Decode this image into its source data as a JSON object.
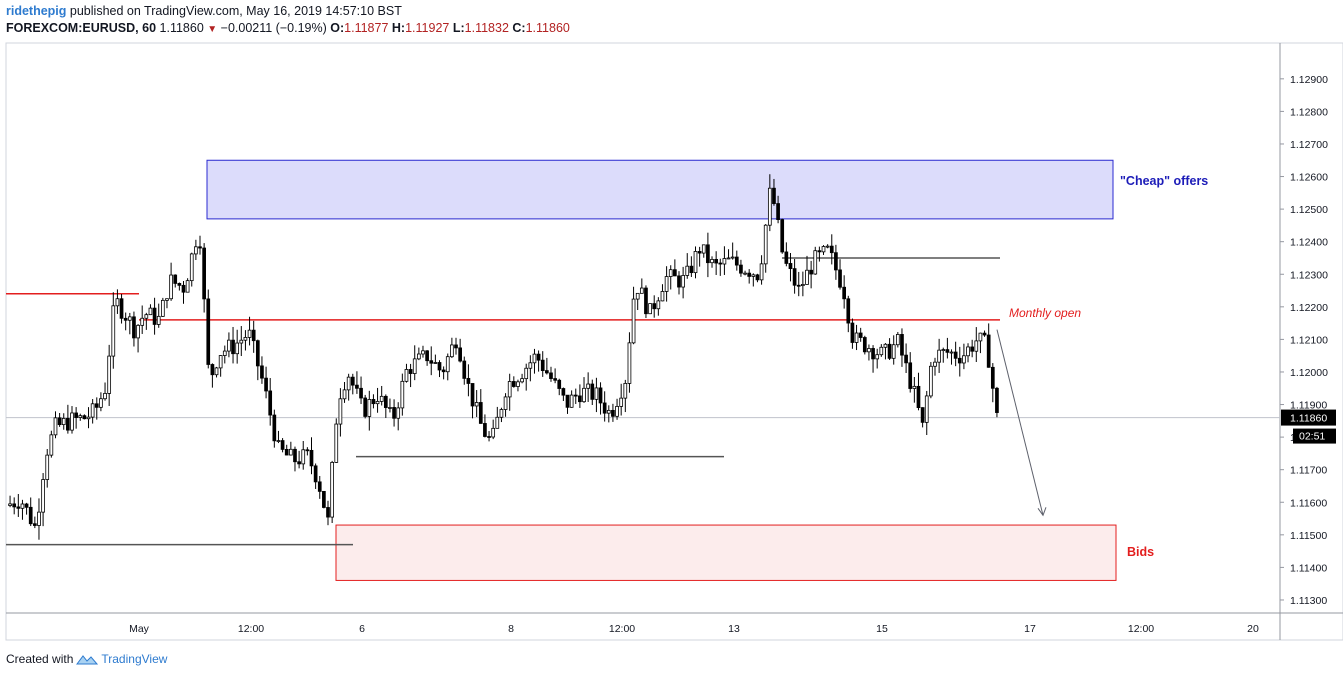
{
  "header": {
    "user": "ridethepig",
    "published": "published on TradingView.com, May 16, 2019 14:57:10 BST",
    "symbol": "FOREXCOM:EURUSD, 60",
    "last": "1.11860",
    "change": "−0.00211 (−0.19%)",
    "o_label": "O:",
    "o_value": "1.11877",
    "h_label": "H:",
    "h_value": "1.11927",
    "l_label": "L:",
    "l_value": "1.11832",
    "c_label": "C:",
    "c_value": "1.11860"
  },
  "footer": {
    "created_with": "Created with",
    "brand": "TradingView"
  },
  "colors": {
    "bull": "#ffffff",
    "bear": "#000000",
    "accent_red": "#e31e1e",
    "zone_blue": "#c8ccf8",
    "zone_red": "#fbe3e3"
  },
  "chart_data": {
    "type": "candlestick",
    "symbol": "FOREXCOM:EURUSD",
    "timeframe": "60",
    "x_axis_labels": [
      "May",
      "12:00",
      "6",
      "8",
      "12:00",
      "13",
      "15",
      "17",
      "12:00",
      "20"
    ],
    "y_axis": {
      "ticks": [
        "1.12900",
        "1.12800",
        "1.12700",
        "1.12600",
        "1.12500",
        "1.12400",
        "1.12300",
        "1.12200",
        "1.12100",
        "1.12000",
        "1.11900",
        "1.11800",
        "1.11700",
        "1.11600",
        "1.11500",
        "1.11400",
        "1.11300"
      ],
      "range": [
        1.1126,
        1.1301
      ]
    },
    "current_price_label": "1.11860",
    "countdown_label": "02:51",
    "annotations": {
      "offers": "\"Cheap\" offers",
      "monthly_open": "Monthly open",
      "bids": "Bids"
    },
    "offers_zone": {
      "low": 1.1247,
      "high": 1.1265
    },
    "bids_zone": {
      "low": 1.1136,
      "high": 1.1153
    },
    "monthly_open_price": 1.1216,
    "first_open_line": 1.1224,
    "current_price": 1.1186,
    "resistance_line": 1.1235,
    "support_line": 1.1174,
    "low_line": 1.1147,
    "projection_target": 1.1156,
    "close_path": [
      [
        0,
        1.1159
      ],
      [
        0.015,
        1.1161
      ],
      [
        0.03,
        1.1152
      ],
      [
        0.04,
        1.1175
      ],
      [
        0.05,
        1.1183
      ],
      [
        0.065,
        1.1185
      ],
      [
        0.08,
        1.1186
      ],
      [
        0.09,
        1.1188
      ],
      [
        0.1,
        1.1195
      ],
      [
        0.11,
        1.1222
      ],
      [
        0.12,
        1.1218
      ],
      [
        0.13,
        1.1213
      ],
      [
        0.14,
        1.1218
      ],
      [
        0.155,
        1.1216
      ],
      [
        0.165,
        1.1228
      ],
      [
        0.18,
        1.1226
      ],
      [
        0.195,
        1.1245
      ],
      [
        0.205,
        1.1197
      ],
      [
        0.215,
        1.1206
      ],
      [
        0.23,
        1.1208
      ],
      [
        0.245,
        1.1212
      ],
      [
        0.26,
        1.1196
      ],
      [
        0.275,
        1.1176
      ],
      [
        0.29,
        1.1173
      ],
      [
        0.305,
        1.1174
      ],
      [
        0.315,
        1.1167
      ],
      [
        0.325,
        1.1154
      ],
      [
        0.335,
        1.1192
      ],
      [
        0.345,
        1.12
      ],
      [
        0.36,
        1.1188
      ],
      [
        0.375,
        1.1193
      ],
      [
        0.39,
        1.1185
      ],
      [
        0.405,
        1.1201
      ],
      [
        0.425,
        1.1205
      ],
      [
        0.44,
        1.12
      ],
      [
        0.455,
        1.1211
      ],
      [
        0.465,
        1.1197
      ],
      [
        0.48,
        1.1183
      ],
      [
        0.49,
        1.1178
      ],
      [
        0.505,
        1.1196
      ],
      [
        0.52,
        1.12
      ],
      [
        0.535,
        1.1205
      ],
      [
        0.55,
        1.1198
      ],
      [
        0.565,
        1.119
      ],
      [
        0.58,
        1.1194
      ],
      [
        0.595,
        1.1193
      ],
      [
        0.61,
        1.1187
      ],
      [
        0.625,
        1.1198
      ],
      [
        0.635,
        1.1228
      ],
      [
        0.65,
        1.1218
      ],
      [
        0.665,
        1.1229
      ],
      [
        0.685,
        1.1228
      ],
      [
        0.7,
        1.1238
      ],
      [
        0.715,
        1.1232
      ],
      [
        0.73,
        1.1234
      ],
      [
        0.745,
        1.1232
      ],
      [
        0.76,
        1.123
      ],
      [
        0.772,
        1.1257
      ],
      [
        0.785,
        1.1234
      ],
      [
        0.8,
        1.1225
      ],
      [
        0.815,
        1.1234
      ],
      [
        0.83,
        1.1237
      ],
      [
        0.845,
        1.1226
      ],
      [
        0.855,
        1.121
      ],
      [
        0.87,
        1.1208
      ],
      [
        0.885,
        1.1205
      ],
      [
        0.9,
        1.1209
      ],
      [
        0.915,
        1.1195
      ],
      [
        0.925,
        1.1183
      ],
      [
        0.935,
        1.1205
      ],
      [
        0.95,
        1.1206
      ],
      [
        0.965,
        1.1205
      ],
      [
        0.98,
        1.121
      ],
      [
        0.99,
        1.1208
      ],
      [
        1,
        1.1186
      ]
    ]
  }
}
